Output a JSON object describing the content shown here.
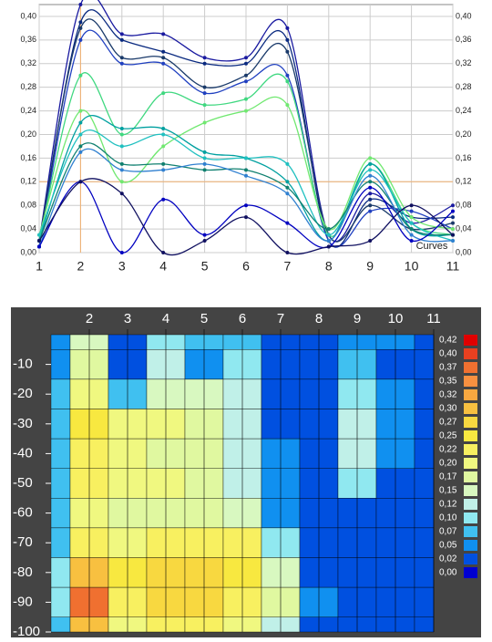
{
  "chart_data": [
    {
      "type": "line",
      "annotation": "Curves",
      "x": [
        1,
        2,
        3,
        4,
        5,
        6,
        7,
        8,
        9,
        10,
        11
      ],
      "xlim": [
        1,
        11
      ],
      "xticks": [
        1,
        2,
        3,
        4,
        5,
        6,
        7,
        8,
        9,
        10,
        11
      ],
      "ylim": [
        0,
        0.42
      ],
      "yticks": [
        {
          "value": 0,
          "label": "0,00"
        },
        {
          "value": 0.04,
          "label": "0,04"
        },
        {
          "value": 0.08,
          "label": "0,08"
        },
        {
          "value": 0.12,
          "label": "0,12"
        },
        {
          "value": 0.16,
          "label": "0,16"
        },
        {
          "value": 0.2,
          "label": "0,20"
        },
        {
          "value": 0.24,
          "label": "0,24"
        },
        {
          "value": 0.28,
          "label": "0,28"
        },
        {
          "value": 0.32,
          "label": "0,32"
        },
        {
          "value": 0.36,
          "label": "0,36"
        },
        {
          "value": 0.4,
          "label": "0,40"
        }
      ],
      "grid": true,
      "cursor": {
        "x": 2,
        "y": 0.12,
        "color": "#f0b070"
      },
      "series": [
        {
          "color": "#1a1aa0",
          "values": [
            0.02,
            0.42,
            0.37,
            0.37,
            0.33,
            0.33,
            0.38,
            0.03,
            0.1,
            0.05,
            0.08
          ]
        },
        {
          "color": "#0a2a80",
          "values": [
            0.01,
            0.39,
            0.36,
            0.34,
            0.32,
            0.32,
            0.36,
            0.02,
            0.09,
            0.06,
            0.06
          ]
        },
        {
          "color": "#1a3a6a",
          "values": [
            0.02,
            0.38,
            0.33,
            0.33,
            0.28,
            0.3,
            0.34,
            0.03,
            0.08,
            0.04,
            0.05
          ]
        },
        {
          "color": "#2040c0",
          "values": [
            0.01,
            0.36,
            0.32,
            0.32,
            0.27,
            0.29,
            0.3,
            0.02,
            0.07,
            0.07,
            0.04
          ]
        },
        {
          "color": "#40d880",
          "values": [
            0.02,
            0.3,
            0.2,
            0.27,
            0.25,
            0.26,
            0.29,
            0.03,
            0.15,
            0.05,
            0.03
          ]
        },
        {
          "color": "#70e870",
          "values": [
            0.03,
            0.24,
            0.12,
            0.18,
            0.22,
            0.24,
            0.25,
            0.04,
            0.16,
            0.06,
            0.04
          ]
        },
        {
          "color": "#00a0a0",
          "values": [
            0.02,
            0.22,
            0.21,
            0.21,
            0.17,
            0.16,
            0.12,
            0.02,
            0.15,
            0.04,
            0.03
          ]
        },
        {
          "color": "#20c0c0",
          "values": [
            0.03,
            0.2,
            0.18,
            0.2,
            0.16,
            0.16,
            0.15,
            0.03,
            0.14,
            0.05,
            0.02
          ]
        },
        {
          "color": "#108070",
          "values": [
            0.02,
            0.18,
            0.15,
            0.15,
            0.14,
            0.14,
            0.11,
            0.04,
            0.12,
            0.04,
            0.03
          ]
        },
        {
          "color": "#3080d0",
          "values": [
            0.01,
            0.17,
            0.14,
            0.14,
            0.15,
            0.13,
            0.1,
            0.02,
            0.13,
            0.03,
            0.02
          ]
        },
        {
          "color": "#0000c0",
          "values": [
            0.01,
            0.12,
            0.0,
            0.09,
            0.03,
            0.08,
            0.05,
            0.01,
            0.11,
            0.02,
            0.07
          ]
        },
        {
          "color": "#101060",
          "values": [
            0.02,
            0.12,
            0.1,
            0.0,
            0.02,
            0.06,
            0.0,
            0.01,
            0.02,
            0.08,
            0.03
          ]
        }
      ]
    },
    {
      "type": "heatmap",
      "x": [
        1,
        2,
        3,
        4,
        5,
        6,
        7,
        8,
        9,
        10,
        11
      ],
      "xlim": [
        1,
        11
      ],
      "xticks": [
        2,
        3,
        4,
        5,
        6,
        7,
        8,
        9,
        10,
        11
      ],
      "y": [
        0,
        -10,
        -20,
        -30,
        -40,
        -50,
        -60,
        -70,
        -80,
        -90,
        -100
      ],
      "ylim": [
        -100,
        0
      ],
      "yticks": [
        -10,
        -20,
        -30,
        -40,
        -50,
        -60,
        -70,
        -80,
        -90,
        -100
      ],
      "z": [
        [
          0.05,
          0.15,
          0.02,
          0.1,
          0.08,
          0.08,
          0.03,
          0.02,
          0.05,
          0.05,
          0.03
        ],
        [
          0.05,
          0.17,
          0.02,
          0.12,
          0.05,
          0.1,
          0.03,
          0.02,
          0.07,
          0.04,
          0.02
        ],
        [
          0.07,
          0.2,
          0.08,
          0.15,
          0.15,
          0.12,
          0.04,
          0.02,
          0.1,
          0.05,
          0.02
        ],
        [
          0.08,
          0.25,
          0.2,
          0.2,
          0.17,
          0.14,
          0.04,
          0.02,
          0.12,
          0.05,
          0.02
        ],
        [
          0.08,
          0.24,
          0.2,
          0.18,
          0.17,
          0.14,
          0.05,
          0.03,
          0.12,
          0.05,
          0.03
        ],
        [
          0.08,
          0.22,
          0.2,
          0.2,
          0.17,
          0.14,
          0.05,
          0.03,
          0.1,
          0.04,
          0.03
        ],
        [
          0.08,
          0.2,
          0.18,
          0.18,
          0.17,
          0.15,
          0.06,
          0.03,
          0.03,
          0.03,
          0.03
        ],
        [
          0.09,
          0.22,
          0.2,
          0.22,
          0.22,
          0.22,
          0.1,
          0.04,
          0.04,
          0.04,
          0.04
        ],
        [
          0.1,
          0.3,
          0.25,
          0.27,
          0.27,
          0.25,
          0.15,
          0.04,
          0.04,
          0.04,
          0.04
        ],
        [
          0.1,
          0.37,
          0.22,
          0.27,
          0.27,
          0.22,
          0.17,
          0.05,
          0.04,
          0.04,
          0.04
        ],
        [
          0.08,
          0.3,
          0.2,
          0.22,
          0.22,
          0.2,
          0.12,
          0.04,
          0.04,
          0.04,
          0.04
        ]
      ],
      "colorbar": [
        {
          "value": 0.42,
          "label": "0,42"
        },
        {
          "value": 0.4,
          "label": "0,40"
        },
        {
          "value": 0.37,
          "label": "0,37"
        },
        {
          "value": 0.35,
          "label": "0,35"
        },
        {
          "value": 0.32,
          "label": "0,32"
        },
        {
          "value": 0.3,
          "label": "0,30"
        },
        {
          "value": 0.27,
          "label": "0,27"
        },
        {
          "value": 0.25,
          "label": "0,25"
        },
        {
          "value": 0.22,
          "label": "0,22"
        },
        {
          "value": 0.2,
          "label": "0,20"
        },
        {
          "value": 0.17,
          "label": "0,17"
        },
        {
          "value": 0.15,
          "label": "0,15"
        },
        {
          "value": 0.12,
          "label": "0,12"
        },
        {
          "value": 0.1,
          "label": "0,10"
        },
        {
          "value": 0.07,
          "label": "0,07"
        },
        {
          "value": 0.05,
          "label": "0,05"
        },
        {
          "value": 0.02,
          "label": "0,02"
        },
        {
          "value": 0,
          "label": "0,00"
        }
      ],
      "colors": [
        "#e00000",
        "#e84020",
        "#f07030",
        "#f89040",
        "#f8a840",
        "#f8c040",
        "#f8d840",
        "#f8e840",
        "#f8f060",
        "#f0f880",
        "#e0f8a0",
        "#d8f8c0",
        "#c0f0e8",
        "#90e8f0",
        "#40c0f0",
        "#1090f0",
        "#0050e0",
        "#0000d0"
      ]
    }
  ]
}
